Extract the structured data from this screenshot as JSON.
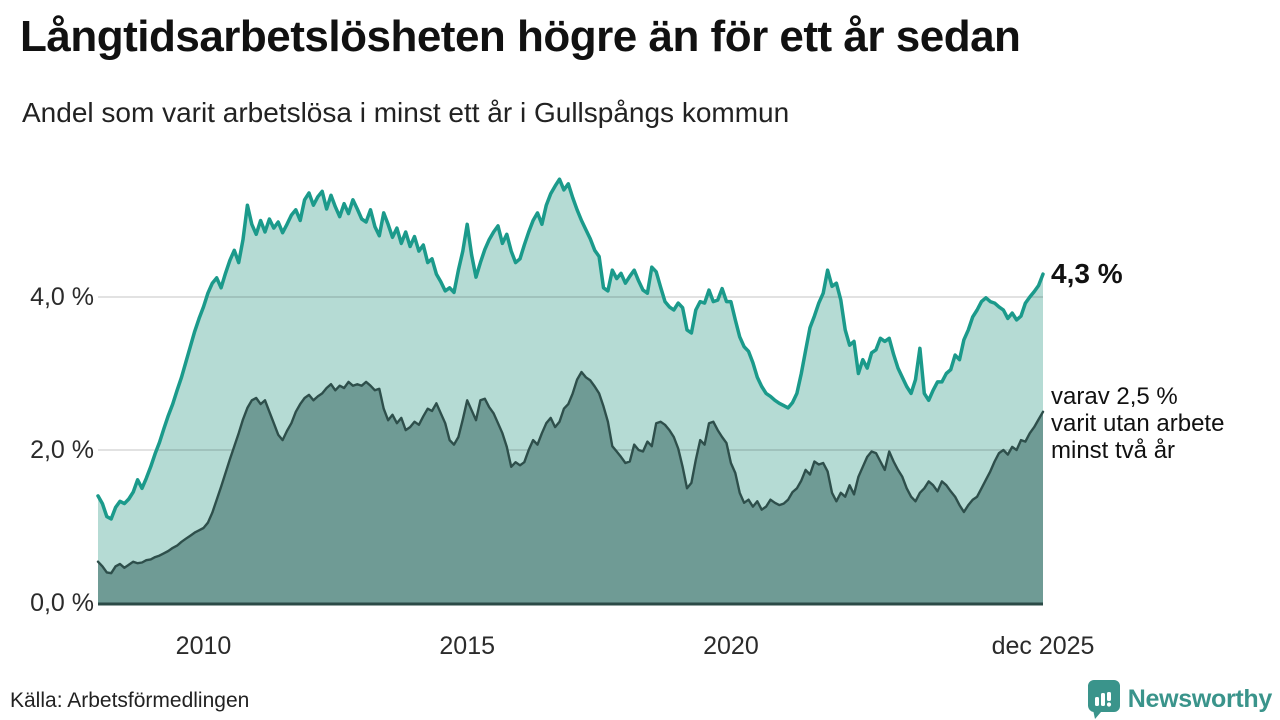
{
  "header": {
    "title": "Långtidsarbetslösheten högre än för ett år sedan",
    "subtitle": "Andel som varit arbetslösa i minst ett år i Gullspångs kommun"
  },
  "annotations": {
    "latest_total": "4,3 %",
    "latest_sub_line1": "varav 2,5 %",
    "latest_sub_line2": "varit utan arbete",
    "latest_sub_line3": "minst två år"
  },
  "footer": {
    "source": "Källa: Arbetsförmedlingen",
    "brand": "Newsworthy"
  },
  "colors": {
    "series1_line": "#1b9a8b",
    "series1_fill": "#b5dbd4",
    "series2_line": "#2e4f4b",
    "series2_fill": "#6f9b95",
    "gridline": "rgba(0,0,0,0.15)",
    "baseline": "#2b4a46",
    "brand_teal": "#3a948b"
  },
  "chart_data": {
    "type": "area",
    "title": "Andel som varit arbetslösa i minst ett år i Gullspångs kommun",
    "x_unit": "monthly",
    "x_start_year": 2008,
    "x_end_label": "dec 2025",
    "ylabel": "%",
    "ylim": [
      0,
      5.8
    ],
    "grid": "horizontal",
    "legend_position": "right-annotations",
    "y_ticks": [
      {
        "label": "4,0 %",
        "value": 4.0
      },
      {
        "label": "2,0 %",
        "value": 2.0
      },
      {
        "label": "0,0 %",
        "value": 0.0
      }
    ],
    "x_ticks": [
      {
        "label": "2010",
        "t": 2010.0
      },
      {
        "label": "2015",
        "t": 2015.0
      },
      {
        "label": "2020",
        "t": 2020.0
      },
      {
        "label": "dec 2025",
        "t": 2025.9167
      }
    ],
    "series": [
      {
        "name": "Arbetslösa minst ett år",
        "latest_value": 4.3,
        "values": [
          1.4,
          1.3,
          1.13,
          1.1,
          1.25,
          1.33,
          1.3,
          1.36,
          1.45,
          1.61,
          1.5,
          1.63,
          1.78,
          1.95,
          2.1,
          2.28,
          2.45,
          2.6,
          2.78,
          2.95,
          3.15,
          3.35,
          3.55,
          3.72,
          3.87,
          4.05,
          4.18,
          4.25,
          4.12,
          4.31,
          4.48,
          4.61,
          4.45,
          4.75,
          5.2,
          4.95,
          4.82,
          5.0,
          4.85,
          5.02,
          4.9,
          4.98,
          4.84,
          4.95,
          5.07,
          5.14,
          5.0,
          5.27,
          5.36,
          5.2,
          5.31,
          5.38,
          5.15,
          5.33,
          5.18,
          5.05,
          5.22,
          5.09,
          5.27,
          5.15,
          5.02,
          4.98,
          5.14,
          4.92,
          4.8,
          5.1,
          4.95,
          4.78,
          4.9,
          4.7,
          4.85,
          4.66,
          4.79,
          4.6,
          4.68,
          4.45,
          4.5,
          4.3,
          4.2,
          4.08,
          4.12,
          4.06,
          4.35,
          4.6,
          4.95,
          4.55,
          4.26,
          4.45,
          4.62,
          4.75,
          4.85,
          4.93,
          4.7,
          4.82,
          4.6,
          4.45,
          4.5,
          4.68,
          4.85,
          5.0,
          5.1,
          4.95,
          5.2,
          5.35,
          5.45,
          5.54,
          5.4,
          5.48,
          5.3,
          5.14,
          5.0,
          4.88,
          4.76,
          4.61,
          4.53,
          4.12,
          4.08,
          4.35,
          4.24,
          4.31,
          4.18,
          4.27,
          4.35,
          4.21,
          4.09,
          4.05,
          4.39,
          4.33,
          4.13,
          3.94,
          3.87,
          3.83,
          3.92,
          3.86,
          3.57,
          3.53,
          3.83,
          3.94,
          3.92,
          4.09,
          3.94,
          3.96,
          4.11,
          3.94,
          3.94,
          3.7,
          3.48,
          3.35,
          3.29,
          3.14,
          2.95,
          2.83,
          2.74,
          2.7,
          2.65,
          2.61,
          2.58,
          2.55,
          2.62,
          2.74,
          3.0,
          3.3,
          3.6,
          3.75,
          3.92,
          4.05,
          4.35,
          4.14,
          4.18,
          3.96,
          3.57,
          3.37,
          3.42,
          3.0,
          3.18,
          3.07,
          3.27,
          3.31,
          3.46,
          3.42,
          3.46,
          3.25,
          3.07,
          2.95,
          2.83,
          2.74,
          2.92,
          3.33,
          2.74,
          2.65,
          2.78,
          2.89,
          2.89,
          3.0,
          3.05,
          3.24,
          3.18,
          3.44,
          3.57,
          3.74,
          3.83,
          3.94,
          3.99,
          3.94,
          3.92,
          3.87,
          3.83,
          3.72,
          3.79,
          3.7,
          3.75,
          3.92,
          4.0,
          4.07,
          4.15,
          4.3
        ]
      },
      {
        "name": "varav utan arbete minst två år",
        "latest_value": 2.5,
        "values": [
          0.54,
          0.48,
          0.4,
          0.39,
          0.48,
          0.51,
          0.46,
          0.5,
          0.54,
          0.52,
          0.53,
          0.56,
          0.57,
          0.6,
          0.62,
          0.65,
          0.68,
          0.72,
          0.75,
          0.8,
          0.84,
          0.88,
          0.92,
          0.95,
          0.98,
          1.05,
          1.18,
          1.35,
          1.52,
          1.7,
          1.88,
          2.05,
          2.22,
          2.4,
          2.55,
          2.65,
          2.68,
          2.6,
          2.65,
          2.5,
          2.35,
          2.2,
          2.13,
          2.25,
          2.35,
          2.5,
          2.6,
          2.68,
          2.72,
          2.65,
          2.7,
          2.74,
          2.81,
          2.86,
          2.78,
          2.84,
          2.81,
          2.89,
          2.84,
          2.86,
          2.84,
          2.89,
          2.84,
          2.78,
          2.8,
          2.54,
          2.39,
          2.46,
          2.35,
          2.42,
          2.26,
          2.3,
          2.37,
          2.33,
          2.44,
          2.54,
          2.51,
          2.61,
          2.48,
          2.35,
          2.13,
          2.07,
          2.17,
          2.4,
          2.65,
          2.52,
          2.39,
          2.65,
          2.67,
          2.56,
          2.48,
          2.35,
          2.22,
          2.04,
          1.78,
          1.84,
          1.8,
          1.84,
          2.0,
          2.13,
          2.07,
          2.22,
          2.35,
          2.42,
          2.3,
          2.37,
          2.54,
          2.6,
          2.74,
          2.92,
          3.02,
          2.95,
          2.91,
          2.83,
          2.74,
          2.57,
          2.37,
          2.05,
          1.98,
          1.91,
          1.83,
          1.85,
          2.07,
          2.0,
          1.98,
          2.11,
          2.05,
          2.35,
          2.37,
          2.33,
          2.26,
          2.17,
          2.02,
          1.78,
          1.5,
          1.57,
          1.87,
          2.13,
          2.07,
          2.35,
          2.37,
          2.26,
          2.17,
          2.09,
          1.83,
          1.7,
          1.44,
          1.31,
          1.35,
          1.26,
          1.33,
          1.22,
          1.26,
          1.35,
          1.31,
          1.28,
          1.3,
          1.35,
          1.45,
          1.5,
          1.6,
          1.74,
          1.68,
          1.85,
          1.81,
          1.83,
          1.72,
          1.44,
          1.33,
          1.44,
          1.39,
          1.54,
          1.42,
          1.65,
          1.78,
          1.91,
          1.98,
          1.96,
          1.85,
          1.74,
          1.98,
          1.85,
          1.74,
          1.65,
          1.5,
          1.39,
          1.33,
          1.44,
          1.5,
          1.59,
          1.54,
          1.46,
          1.59,
          1.54,
          1.46,
          1.39,
          1.28,
          1.19,
          1.28,
          1.35,
          1.39,
          1.5,
          1.61,
          1.72,
          1.85,
          1.96,
          2.0,
          1.94,
          2.04,
          2.0,
          2.13,
          2.11,
          2.22,
          2.3,
          2.4,
          2.5
        ]
      }
    ]
  }
}
